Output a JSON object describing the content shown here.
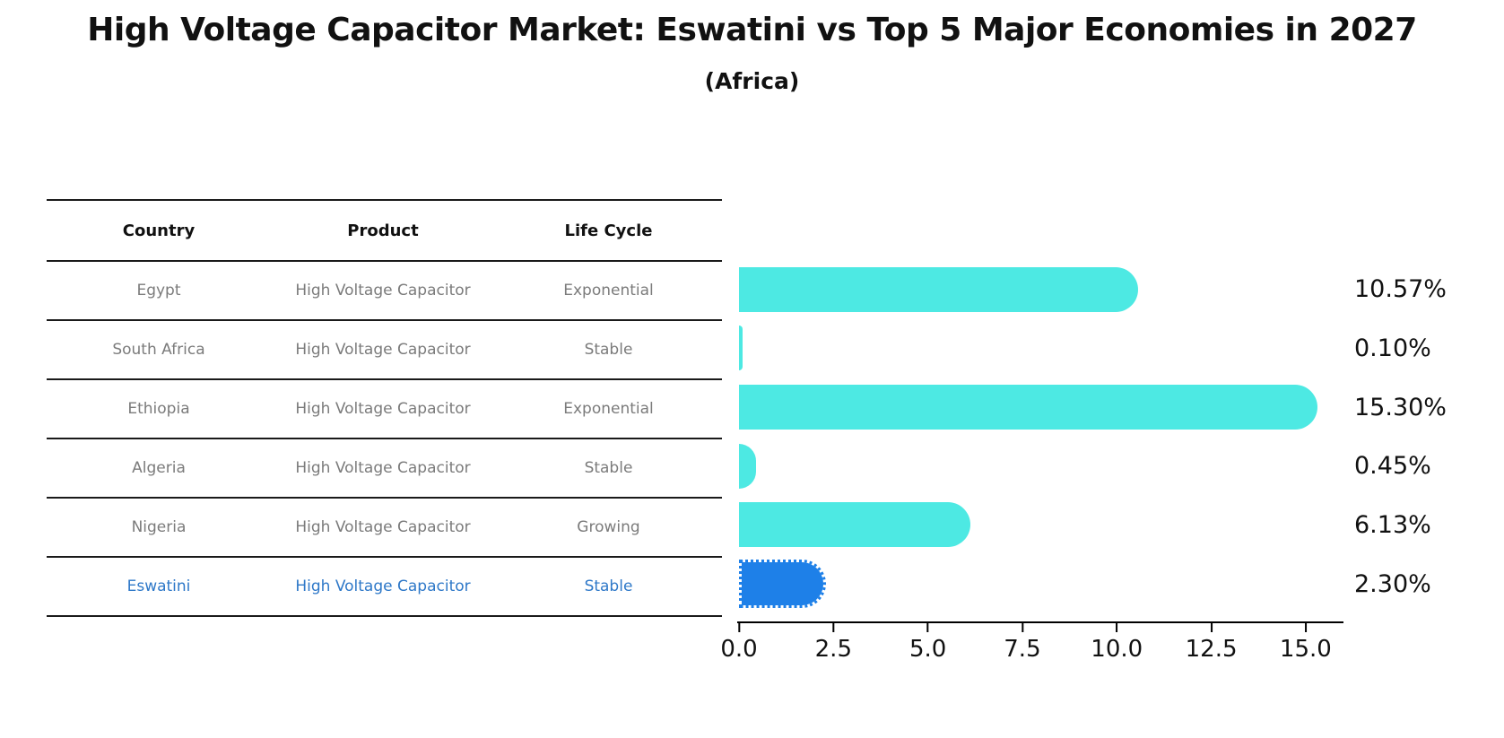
{
  "title": "High Voltage Capacitor Market: Eswatini vs Top 5 Major Economies in 2027",
  "subtitle": "(Africa)",
  "table": {
    "headers": {
      "country": "Country",
      "product": "Product",
      "life_cycle": "Life Cycle"
    },
    "rows": [
      {
        "country": "Egypt",
        "product": "High Voltage Capacitor",
        "life_cycle": "Exponential"
      },
      {
        "country": "South Africa",
        "product": "High Voltage Capacitor",
        "life_cycle": "Stable"
      },
      {
        "country": "Ethiopia",
        "product": "High Voltage Capacitor",
        "life_cycle": "Exponential"
      },
      {
        "country": "Algeria",
        "product": "High Voltage Capacitor",
        "life_cycle": "Stable"
      },
      {
        "country": "Nigeria",
        "product": "High Voltage Capacitor",
        "life_cycle": "Growing"
      },
      {
        "country": "Eswatini",
        "product": "High Voltage Capacitor",
        "life_cycle": "Stable"
      }
    ]
  },
  "chart_data": {
    "type": "bar",
    "orientation": "horizontal",
    "title": "High Voltage Capacitor Market: Eswatini vs Top 5 Major Economies in 2027 (Africa)",
    "categories": [
      "Egypt",
      "South Africa",
      "Ethiopia",
      "Algeria",
      "Nigeria",
      "Eswatini"
    ],
    "values": [
      10.57,
      0.1,
      15.3,
      0.45,
      6.13,
      2.3
    ],
    "value_labels": [
      "10.57%",
      "0.10%",
      "15.30%",
      "0.45%",
      "6.13%",
      "2.30%"
    ],
    "highlight_category": "Eswatini",
    "highlight_index": 5,
    "xlim": [
      0,
      16
    ],
    "x_tick_values": [
      0,
      2.5,
      5,
      7.5,
      10,
      12.5,
      15
    ],
    "x_tick_labels": [
      "0.0",
      "2.5",
      "5.0",
      "7.5",
      "10.0",
      "12.5",
      "15.0"
    ],
    "grid": false,
    "legend": false
  },
  "colors": {
    "bar": "#4DE9E3",
    "bar-highlight": "#1E80E8",
    "highlight-text": "#2E78C8",
    "row-text": "#7b7b7b",
    "header-text": "#111111",
    "title-text": "#111111",
    "label-text": "#111111",
    "axis": "#000000",
    "line": "#1a1a1a"
  }
}
